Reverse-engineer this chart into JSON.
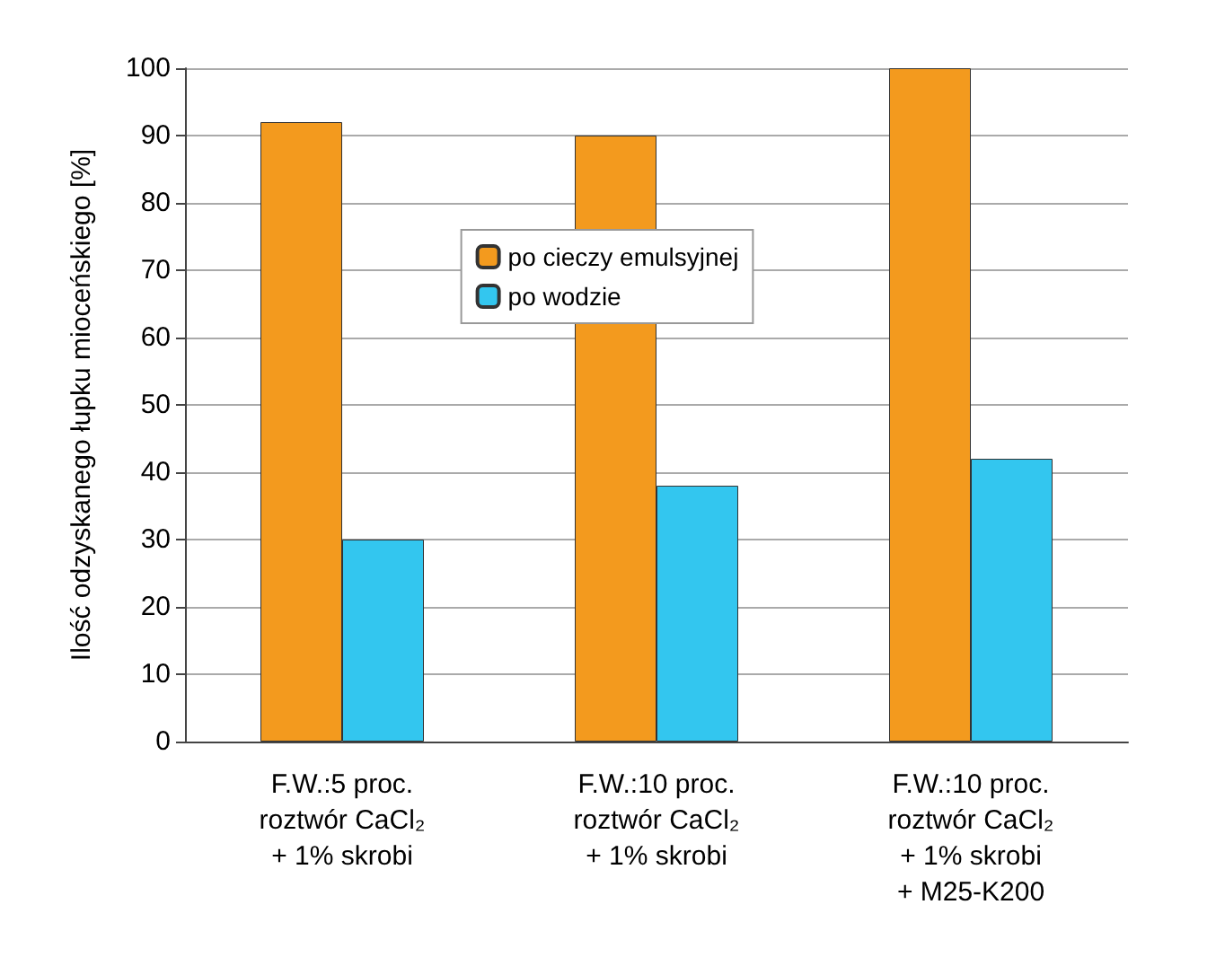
{
  "chart_data": {
    "type": "bar",
    "ylabel": "Ilość odzyskanego łupku mioceńskiego [%]",
    "categories": [
      "F.W.:5 proc.\nroztwór CaCl₂\n+ 1% skrobi",
      "F.W.:10 proc.\nroztwór CaCl₂\n+ 1% skrobi",
      "F.W.:10 proc.\nroztwór CaCl₂\n+ 1% skrobi\n+ M25-K200"
    ],
    "series": [
      {
        "name": "po cieczy emulsyjnej",
        "color": "#f39a1e",
        "values": [
          92,
          90,
          100
        ]
      },
      {
        "name": "po wodzie",
        "color": "#33c6ef",
        "values": [
          30,
          38,
          42
        ]
      }
    ],
    "ylim": [
      0,
      100
    ],
    "yticks": [
      0,
      10,
      20,
      30,
      40,
      50,
      60,
      70,
      80,
      90,
      100
    ],
    "grid": "y",
    "legend": "top"
  }
}
